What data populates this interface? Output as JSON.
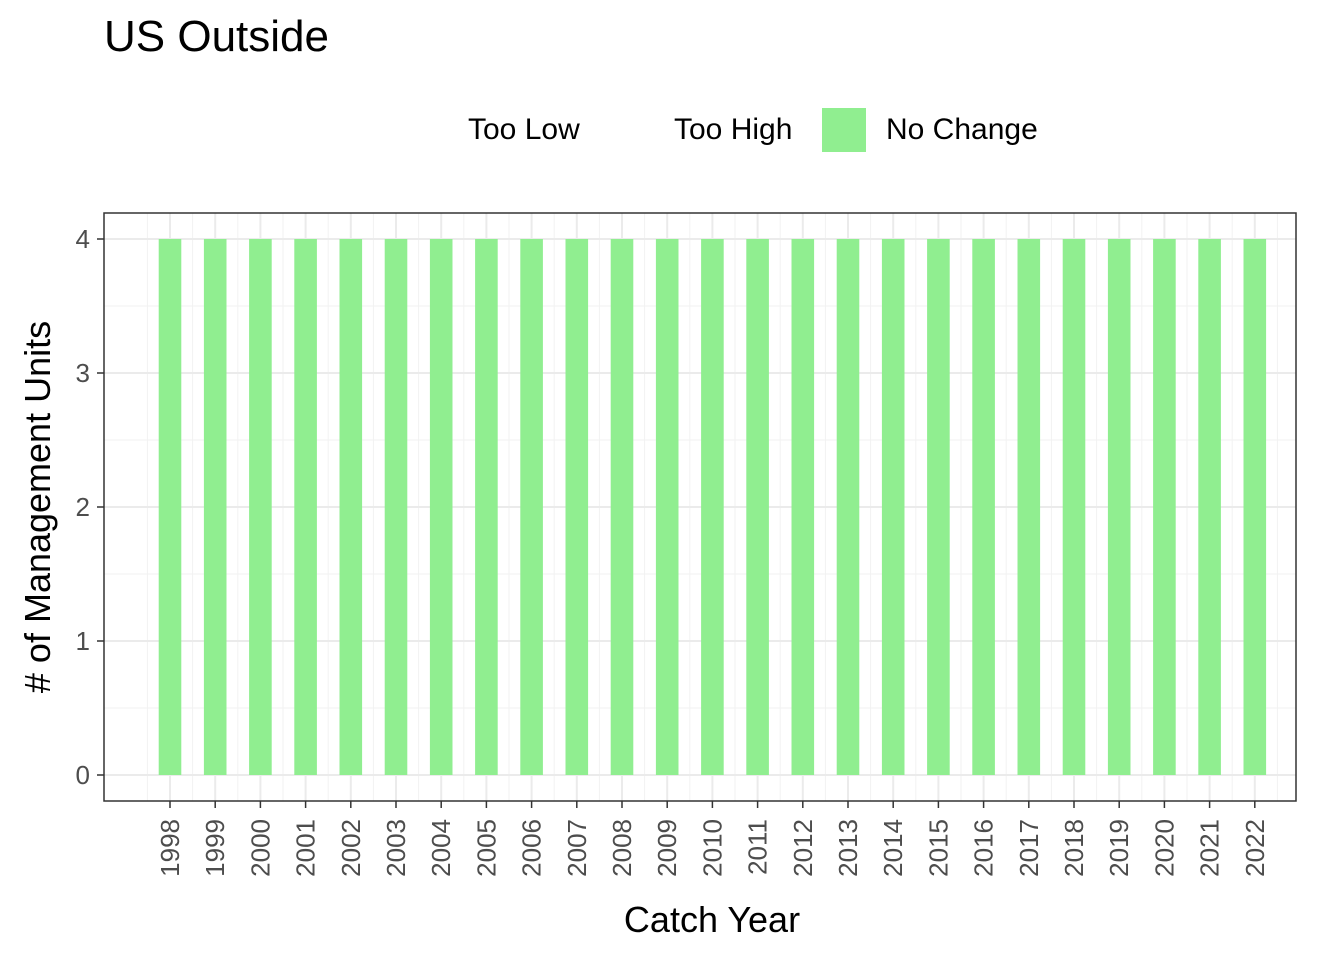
{
  "chart_data": {
    "type": "bar",
    "title": "US Outside",
    "xlabel": "Catch Year",
    "ylabel": "# of Management Units",
    "categories": [
      "1998",
      "1999",
      "2000",
      "2001",
      "2002",
      "2003",
      "2004",
      "2005",
      "2006",
      "2007",
      "2008",
      "2009",
      "2010",
      "2011",
      "2012",
      "2013",
      "2014",
      "2015",
      "2016",
      "2017",
      "2018",
      "2019",
      "2020",
      "2021",
      "2022"
    ],
    "ylim": [
      0,
      4
    ],
    "yticks": [
      "0",
      "1",
      "2",
      "3",
      "4"
    ],
    "grid": true,
    "legend_position": "top",
    "legend": [
      {
        "name": "Too Low",
        "color": null
      },
      {
        "name": "Too High",
        "color": null
      },
      {
        "name": "No Change",
        "color": "#90EE90"
      }
    ],
    "series": [
      {
        "name": "No Change",
        "color": "#90EE90",
        "values": [
          4,
          4,
          4,
          4,
          4,
          4,
          4,
          4,
          4,
          4,
          4,
          4,
          4,
          4,
          4,
          4,
          4,
          4,
          4,
          4,
          4,
          4,
          4,
          4,
          4
        ]
      }
    ]
  }
}
